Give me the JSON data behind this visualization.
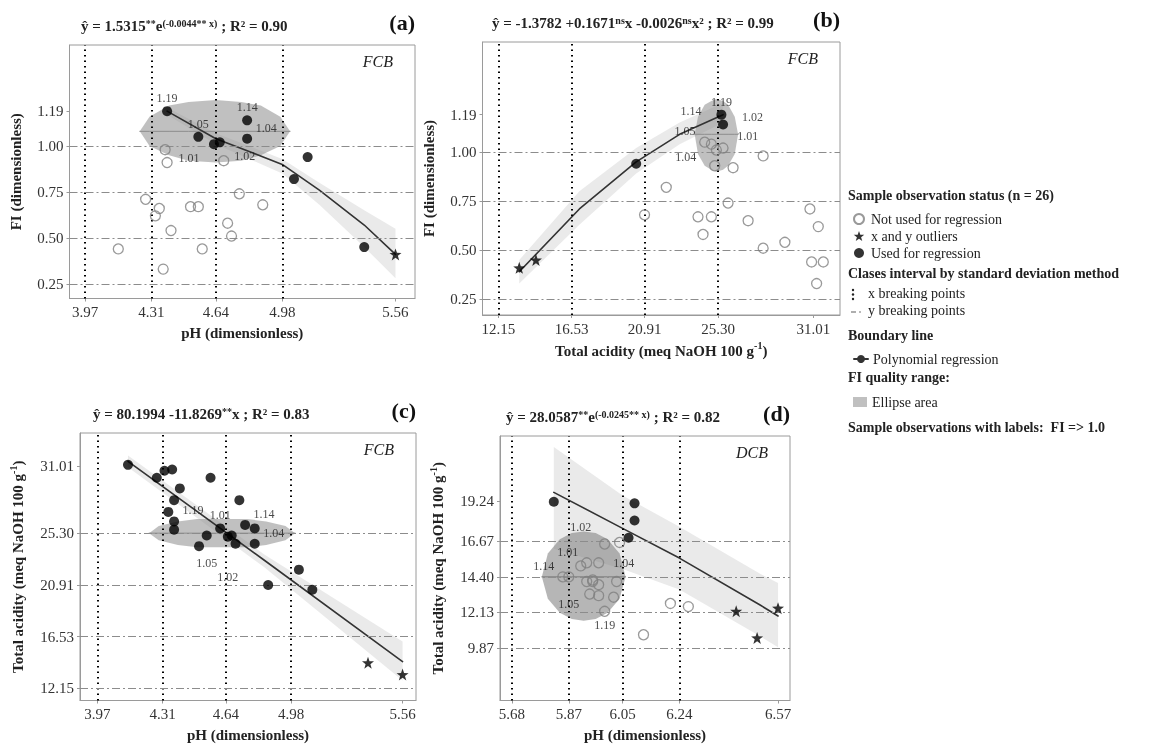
{
  "chart_data": [
    {
      "type": "scatter",
      "title": "ŷ = 1.5315$^{**}$e$^{(-0.0044** x)}$ ; R² = 0.90",
      "xlabel": "pH (dimensionless)",
      "ylabel": "FI (dimensionless)",
      "xlim": [
        3.89,
        5.66
      ],
      "xticks": [
        3.97,
        4.31,
        4.64,
        4.98,
        5.56
      ],
      "ylim": [
        0.17,
        1.55
      ],
      "yticks": [
        0.25,
        {
          "value": 0.5,
          "label": "0.50"
        },
        0.75,
        {
          "value": 1,
          "label": "1.00"
        },
        1.19
      ],
      "ref_lines": [
        {
          "axis": "x",
          "value": 3.97,
          "line_style": "dotted",
          "color": "#000000"
        },
        {
          "axis": "x",
          "value": 4.31,
          "line_style": "dotted",
          "color": "#000000"
        },
        {
          "axis": "x",
          "value": 4.64,
          "line_style": "dotted",
          "color": "#000000"
        },
        {
          "axis": "x",
          "value": 4.98,
          "line_style": "dotted",
          "color": "#000000"
        },
        {
          "axis": "y",
          "value": 0.25,
          "line_style": "dashed",
          "color": "#8c8c8c"
        },
        {
          "axis": "y",
          "value": 0.5,
          "line_style": "dashed",
          "color": "#8c8c8c"
        },
        {
          "axis": "y",
          "value": 0.75,
          "line_style": "dashed",
          "color": "#8c8c8c"
        },
        {
          "axis": "y",
          "value": 1,
          "line_style": "dashed",
          "color": "#8c8c8c"
        }
      ],
      "annotations": [
        "(a)",
        "FCB"
      ],
      "series": [
        {
          "type": "line",
          "color": "#8c8c8c",
          "line_style": "solid",
          "x": [
            4.25,
            4.3,
            4.4,
            4.5,
            4.64,
            4.77,
            4.87,
            4.97,
            5.02
          ],
          "values": [
            1.08,
            1.08,
            1.08,
            1.08,
            1.08,
            1.08,
            1.08,
            1.08,
            1.08
          ],
          "lower": [
            1.08,
            1,
            0.95,
            0.92,
            0.91,
            0.92,
            0.95,
            1,
            1.08
          ],
          "upper": [
            1.08,
            1.16,
            1.22,
            1.24,
            1.25,
            1.24,
            1.22,
            1.16,
            1.08
          ]
        },
        {
          "type": "line",
          "color": "#333333",
          "marker": "none",
          "x": [
            4.39,
            4.64,
            4.98,
            5.17,
            5.4,
            5.56
          ],
          "values": [
            1.19,
            1.04,
            0.9,
            0.76,
            0.57,
            0.41
          ],
          "lower": [
            1.17,
            1.01,
            0.85,
            0.68,
            0.45,
            0.28
          ],
          "upper": [
            1.21,
            1.07,
            0.93,
            0.8,
            0.65,
            0.55
          ]
        },
        {
          "type": "scatter",
          "color": "#7f7f7f",
          "marker": "circle-open",
          "x": [
            4.38,
            4.39,
            4.68,
            4.28,
            4.35,
            4.33,
            4.41,
            4.51,
            4.55,
            4.76,
            4.88,
            4.7,
            4.72,
            4.57,
            4.14,
            4.37
          ],
          "values": [
            0.98,
            0.91,
            0.92,
            0.71,
            0.66,
            0.62,
            0.54,
            0.67,
            0.67,
            0.74,
            0.68,
            0.58,
            0.51,
            0.44,
            0.44,
            0.33
          ]
        },
        {
          "type": "scatter",
          "color": "#000000",
          "marker": "circle",
          "x": [
            4.39,
            4.55,
            4.63,
            4.66,
            4.8,
            4.8,
            5.04,
            5.11,
            5.4
          ],
          "values": [
            1.19,
            1.05,
            1.01,
            1.02,
            1.14,
            1.04,
            0.82,
            0.94,
            0.45
          ],
          "value_labels": [
            "1.19",
            "1.05",
            "1.01",
            "1.02",
            "1.14",
            "1.04",
            null,
            null,
            null
          ]
        },
        {
          "type": "scatter",
          "color": "#000000",
          "marker": "star",
          "x": [
            5.56
          ],
          "values": [
            0.41
          ]
        }
      ]
    },
    {
      "type": "scatter",
      "title": "ŷ = -1.3782 +0.1671$^{ns}$x -0.0026$^{ns}$x² ; R² = 0.99",
      "xlabel": "Total acidity (meq NaOH 100 g$^{-1}$)",
      "ylabel": "FI (dimensionless)",
      "xlim": [
        11.2,
        32.6
      ],
      "xticks": [
        12.15,
        16.53,
        20.91,
        {
          "value": 25.3,
          "label": "25.30"
        },
        31.01
      ],
      "ylim": [
        0.17,
        1.56
      ],
      "yticks": [
        0.25,
        {
          "value": 0.5,
          "label": "0.50"
        },
        0.75,
        {
          "value": 1,
          "label": "1.00"
        },
        1.19
      ],
      "ref_lines": [
        {
          "axis": "x",
          "value": 12.15,
          "line_style": "dotted",
          "color": "#000000"
        },
        {
          "axis": "x",
          "value": 16.53,
          "line_style": "dotted",
          "color": "#000000"
        },
        {
          "axis": "x",
          "value": 20.91,
          "line_style": "dotted",
          "color": "#000000"
        },
        {
          "axis": "x",
          "value": 25.3,
          "line_style": "dotted",
          "color": "#000000"
        },
        {
          "axis": "y",
          "value": 0.25,
          "line_style": "dashed",
          "color": "#8c8c8c"
        },
        {
          "axis": "y",
          "value": 0.5,
          "line_style": "dashed",
          "color": "#8c8c8c"
        },
        {
          "axis": "y",
          "value": 0.75,
          "line_style": "dashed",
          "color": "#8c8c8c"
        },
        {
          "axis": "y",
          "value": 1,
          "line_style": "dashed",
          "color": "#8c8c8c"
        }
      ],
      "annotations": [
        "(b)",
        "FCB",
        "Sample observation status (n = 26)",
        "Clases interval by standard deviation method",
        "x breaking points",
        "y breaking points",
        "Boundary line",
        "FI quality range:",
        "Sample observations with labels:  FI => 1.0"
      ],
      "legend": "right",
      "series": [
        {
          "type": "line",
          "name": "Ellipse area",
          "color": "#8c8c8c",
          "line_style": "solid",
          "x": [
            23.9,
            24.1,
            24.5,
            24.9,
            25.2,
            25.6,
            25.9,
            26.3,
            26.5
          ],
          "values": [
            1.09,
            1.09,
            1.09,
            1.09,
            1.09,
            1.09,
            1.09,
            1.09,
            1.09
          ],
          "lower": [
            1.09,
            0.99,
            0.93,
            0.91,
            0.9,
            0.91,
            0.93,
            0.99,
            1.09
          ],
          "upper": [
            1.09,
            1.18,
            1.24,
            1.26,
            1.27,
            1.26,
            1.24,
            1.18,
            1.09
          ]
        },
        {
          "type": "line",
          "name": "Polynomial regression",
          "color": "#333333",
          "marker": "none",
          "x": [
            13.4,
            17,
            20.4,
            23,
            25.6
          ],
          "values": [
            0.39,
            0.71,
            0.95,
            1.09,
            1.19
          ],
          "lower": [
            0.33,
            0.63,
            0.89,
            1.04,
            1.15
          ],
          "upper": [
            0.45,
            0.8,
            1.02,
            1.15,
            1.25
          ]
        },
        {
          "type": "scatter",
          "name": "Not used for regression",
          "color": "#7f7f7f",
          "marker": "circle-open",
          "x": [
            24.5,
            24.9,
            25.2,
            25.6,
            25.1,
            22.2,
            20.9,
            24.1,
            24.9,
            24.4,
            25.9,
            26.2,
            27.1,
            28,
            28,
            30.8,
            31.3,
            29.3,
            30.9,
            31.6,
            31.2
          ],
          "values": [
            1.05,
            1.04,
            1.01,
            1.02,
            0.93,
            0.82,
            0.68,
            0.67,
            0.67,
            0.58,
            0.74,
            0.92,
            0.65,
            0.98,
            0.51,
            0.71,
            0.62,
            0.54,
            0.44,
            0.44,
            0.33
          ],
          "value_labels": [
            "1.05",
            "1.04",
            "1.01",
            "1.02",
            null,
            null,
            null,
            null,
            null,
            null,
            null,
            null,
            null,
            null,
            null,
            null,
            null,
            null,
            null,
            null,
            null
          ]
        },
        {
          "type": "scatter",
          "name": "x and y outliers",
          "color": "#000000",
          "marker": "star",
          "x": [
            13.4,
            14.4
          ],
          "values": [
            0.41,
            0.45
          ]
        },
        {
          "type": "scatter",
          "name": "Used for regression",
          "color": "#000000",
          "marker": "circle",
          "x": [
            20.4,
            25.5,
            25.6
          ],
          "values": [
            0.94,
            1.19,
            1.14
          ],
          "value_labels": [
            null,
            "1.19",
            "1.14"
          ]
        }
      ]
    },
    {
      "type": "scatter",
      "title": "ŷ = 80.1994 -11.8269$^{**}$x ; R² = 0.83",
      "xlabel": "pH (dimensionless)",
      "ylabel": "Total acidity (meq NaOH 100 g$^{-1}$)",
      "xlim": [
        3.88,
        5.63
      ],
      "xticks": [
        3.97,
        4.31,
        4.64,
        4.98,
        5.56
      ],
      "ylim": [
        11.1,
        33.8
      ],
      "yticks": [
        12.15,
        16.53,
        20.91,
        {
          "value": 25.3,
          "label": "25.30"
        },
        31.01
      ],
      "ref_lines": [
        {
          "axis": "x",
          "value": 3.97,
          "line_style": "dotted",
          "color": "#000000"
        },
        {
          "axis": "x",
          "value": 4.31,
          "line_style": "dotted",
          "color": "#000000"
        },
        {
          "axis": "x",
          "value": 4.64,
          "line_style": "dotted",
          "color": "#000000"
        },
        {
          "axis": "x",
          "value": 4.98,
          "line_style": "dotted",
          "color": "#000000"
        },
        {
          "axis": "y",
          "value": 12.15,
          "line_style": "dashed",
          "color": "#8c8c8c"
        },
        {
          "axis": "y",
          "value": 16.53,
          "line_style": "dashed",
          "color": "#8c8c8c"
        },
        {
          "axis": "y",
          "value": 20.91,
          "line_style": "dashed",
          "color": "#8c8c8c"
        },
        {
          "axis": "y",
          "value": 25.3,
          "line_style": "dashed",
          "color": "#8c8c8c"
        }
      ],
      "annotations": [
        "(c)",
        "FCB",
        {
          "text": "1.19",
          "x": 4.37,
          "y": 26.3
        },
        {
          "text": "1.05",
          "x": 4.54,
          "y": 25.1
        },
        {
          "text": "1.01",
          "x": 4.61,
          "y": 25.7
        },
        {
          "text": "1.02",
          "x": 4.65,
          "y": 25
        },
        {
          "text": "1.14",
          "x": 4.74,
          "y": 26
        },
        {
          "text": "1.04",
          "x": 4.79,
          "y": 24.4
        }
      ],
      "series": [
        {
          "type": "line",
          "color": "#8c8c8c",
          "line_style": "solid",
          "x": [
            4.24,
            4.29,
            4.39,
            4.49,
            4.62,
            4.75,
            4.85,
            4.95,
            5
          ],
          "values": [
            25.3,
            25.3,
            25.3,
            25.3,
            25.3,
            25.3,
            25.3,
            25.3,
            25.3
          ],
          "lower": [
            25.3,
            24.7,
            24.3,
            24.1,
            24.1,
            24.1,
            24.3,
            24.7,
            25.3
          ],
          "upper": [
            25.3,
            25.9,
            26.3,
            26.5,
            26.5,
            26.5,
            26.3,
            25.9,
            25.3
          ]
        },
        {
          "type": "line",
          "color": "#333333",
          "marker": "none",
          "x": [
            4.13,
            4.84,
            5.56
          ],
          "values": [
            31.4,
            23,
            14.4
          ],
          "lower": [
            30.9,
            22.4,
            12.8
          ],
          "upper": [
            31.9,
            23.5,
            16.1
          ]
        },
        {
          "type": "scatter",
          "color": "#000000",
          "marker": "circle",
          "x": [
            4.13,
            4.28,
            4.32,
            4.36,
            4.56,
            4.4,
            4.37,
            4.71,
            4.34,
            4.37,
            4.37,
            4.54,
            4.5,
            4.61,
            4.65,
            4.67,
            4.69,
            4.74,
            4.79,
            4.79,
            4.86,
            5.02,
            5.09
          ],
          "values": [
            31.1,
            30,
            30.6,
            30.7,
            30,
            29.1,
            28.1,
            28.1,
            27.1,
            26.3,
            25.6,
            25.1,
            24.2,
            25.7,
            25,
            25.1,
            24.4,
            26,
            25.7,
            24.4,
            20.9,
            22.2,
            20.5
          ]
        },
        {
          "type": "scatter",
          "color": "#000000",
          "marker": "star",
          "x": [
            5.38,
            5.56
          ],
          "values": [
            14.3,
            13.3
          ]
        }
      ]
    },
    {
      "type": "scatter",
      "title": "ŷ = 28.0587$^{**}$e$^{(-0.0245** x)}$ ; R² = 0.82",
      "xlabel": "pH (dimensionless)",
      "ylabel": "Total acidity (meq NaOH 100 g$^{-1}$)",
      "xlim": [
        5.64,
        6.61
      ],
      "xticks": [
        5.68,
        5.87,
        6.05,
        6.24,
        6.57
      ],
      "ylim": [
        6.5,
        23.4
      ],
      "yticks": [
        9.87,
        12.13,
        {
          "value": 14.4,
          "label": "14.40"
        },
        16.67,
        19.24
      ],
      "ref_lines": [
        {
          "axis": "x",
          "value": 5.68,
          "line_style": "dotted",
          "color": "#000000"
        },
        {
          "axis": "x",
          "value": 5.87,
          "line_style": "dotted",
          "color": "#000000"
        },
        {
          "axis": "x",
          "value": 6.05,
          "line_style": "dotted",
          "color": "#000000"
        },
        {
          "axis": "x",
          "value": 6.24,
          "line_style": "dotted",
          "color": "#000000"
        },
        {
          "axis": "y",
          "value": 9.87,
          "line_style": "dashed",
          "color": "#8c8c8c"
        },
        {
          "axis": "y",
          "value": 12.13,
          "line_style": "dashed",
          "color": "#8c8c8c"
        },
        {
          "axis": "y",
          "value": 14.4,
          "line_style": "dashed",
          "color": "#8c8c8c"
        },
        {
          "axis": "y",
          "value": 16.67,
          "line_style": "dashed",
          "color": "#8c8c8c"
        }
      ],
      "annotations": [
        "(d)",
        "DCB",
        {
          "text": "1.01",
          "x": 5.93,
          "y": 15.3
        },
        {
          "text": "1.04",
          "x": 5.97,
          "y": 15.3
        },
        {
          "text": "1.02",
          "x": 5.91,
          "y": 15.1
        },
        {
          "text": "1.14",
          "x": 5.85,
          "y": 14.4
        },
        {
          "text": "1.05",
          "x": 5.87,
          "y": 14.4
        },
        {
          "text": "1.19",
          "x": 5.99,
          "y": 12.2
        }
      ],
      "series": [
        {
          "type": "line",
          "color": "#7a7a7a",
          "line_style": "solid",
          "x": [
            5.78,
            5.8,
            5.84,
            5.88,
            5.92,
            5.96,
            6,
            6.04,
            6.06
          ],
          "values": [
            14.4,
            14.4,
            14.4,
            14.4,
            14.4,
            14.4,
            14.4,
            14.4,
            14.4
          ],
          "lower": [
            14.4,
            13,
            12.1,
            11.7,
            11.6,
            11.7,
            12.1,
            13,
            14.4
          ],
          "upper": [
            14.4,
            15.9,
            16.8,
            17.2,
            17.3,
            17.2,
            16.8,
            15.9,
            14.4
          ]
        },
        {
          "type": "line",
          "color": "#333333",
          "marker": "none",
          "x": [
            5.82,
            6.05,
            6.24,
            6.51,
            6.57
          ],
          "values": [
            19.8,
            17.5,
            15.6,
            12.6,
            11.9
          ],
          "lower": [
            16.2,
            14.9,
            13.6,
            10.6,
            9.9
          ],
          "upper": [
            22.7,
            19.6,
            17.6,
            14.6,
            14
          ]
        },
        {
          "type": "scatter",
          "color": "#7f7f7f",
          "marker": "circle-open",
          "x": [
            6.04,
            5.99,
            5.93,
            5.97,
            5.91,
            5.85,
            5.87,
            5.93,
            5.95,
            5.95,
            5.97,
            6.03,
            5.94,
            5.97,
            6.02,
            5.99,
            6.21,
            6.27,
            6.12
          ],
          "values": [
            16.6,
            16.5,
            15.3,
            15.3,
            15.1,
            14.4,
            14.4,
            14.1,
            14.2,
            14.1,
            13.9,
            14.1,
            13.3,
            13.2,
            13.1,
            12.2,
            12.7,
            12.5,
            10.7
          ]
        },
        {
          "type": "scatter",
          "color": "#000000",
          "marker": "circle",
          "x": [
            5.82,
            6.09,
            6.09,
            6.07
          ],
          "values": [
            19.2,
            19.1,
            18,
            16.9
          ]
        },
        {
          "type": "scatter",
          "color": "#000000",
          "marker": "star",
          "x": [
            6.43,
            6.5,
            6.57
          ],
          "values": [
            12.2,
            10.5,
            12.4
          ]
        }
      ]
    }
  ]
}
